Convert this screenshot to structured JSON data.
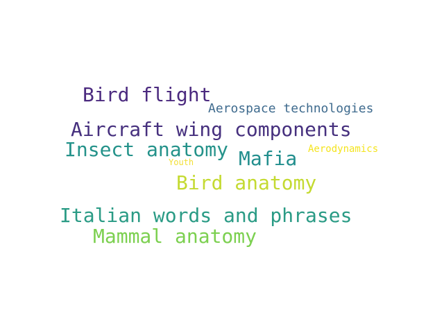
{
  "word_cloud": {
    "words": [
      {
        "text": "Bird flight",
        "color": "#4b2a7f"
      },
      {
        "text": "Aerospace technologies",
        "color": "#3f6b8e"
      },
      {
        "text": "Aircraft wing components",
        "color": "#46307e"
      },
      {
        "text": "Insect anatomy",
        "color": "#24928a"
      },
      {
        "text": "Mafia",
        "color": "#218e8d"
      },
      {
        "text": "Aerodynamics",
        "color": "#f4e41f"
      },
      {
        "text": "Youth",
        "color": "#f2df34"
      },
      {
        "text": "Bird anatomy",
        "color": "#c4da31"
      },
      {
        "text": "Italian words and phrases",
        "color": "#2a9b85"
      },
      {
        "text": "Mammal anatomy",
        "color": "#7cd050"
      }
    ]
  }
}
